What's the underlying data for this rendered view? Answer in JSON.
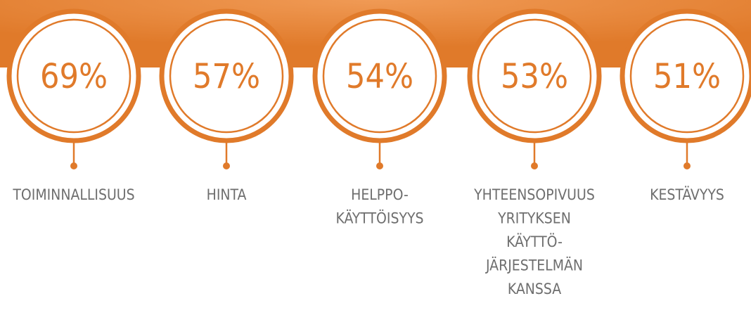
{
  "items": [
    {
      "value": "69%",
      "label": [
        "TOIMINNALLISUUS"
      ]
    },
    {
      "value": "57%",
      "label": [
        "HINTA"
      ]
    },
    {
      "value": "54%",
      "label": [
        "HELPPO-",
        "KÄYTTÖISYYS"
      ]
    },
    {
      "value": "53%",
      "label": [
        "YHTEENSOPIVUUS",
        "YRITYKSEN",
        "KÄYTTÖ-",
        "JÄRJESTELMÄN",
        "KANSSA"
      ]
    },
    {
      "value": "51%",
      "label": [
        "KESTÄVYYS"
      ]
    }
  ]
}
